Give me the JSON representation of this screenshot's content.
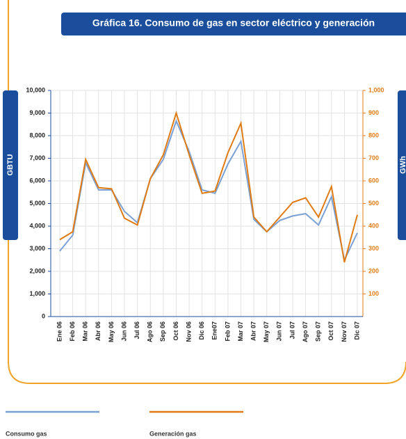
{
  "chart_data": {
    "type": "line",
    "title": "Gráfica 16. Consumo de gas en sector eléctrico y generación",
    "y_label": "GBTU",
    "y2_label": "GWh",
    "categories": [
      "Ene 06",
      "Feb 06",
      "Mar 06",
      "Abr 06",
      "May 06",
      "Jun 06",
      "Jul 06",
      "Ago 06",
      "Sep 06",
      "Oct 06",
      "Nov 06",
      "Dic 06",
      "Ene07",
      "Feb 07",
      "Mar 07",
      "Abr 07",
      "May 07",
      "Jun 07",
      "Jul 07",
      "Ago 07",
      "Sep 07",
      "Oct 07",
      "Nov 07",
      "Dic 07"
    ],
    "series": [
      {
        "name": "Consumo gas",
        "color": "#7aa0d4",
        "values": [
          2900,
          3600,
          6800,
          5600,
          5600,
          4650,
          4150,
          6100,
          6950,
          8650,
          7300,
          5600,
          5450,
          6750,
          7750,
          4300,
          3750,
          4250,
          4450,
          4550,
          4050,
          5300,
          2500,
          3700
        ]
      },
      {
        "name": "Generación gas",
        "color": "#e07b14",
        "axis": "y2",
        "values": [
          340,
          375,
          695,
          570,
          565,
          435,
          405,
          610,
          715,
          900,
          715,
          545,
          555,
          725,
          855,
          440,
          375,
          440,
          505,
          525,
          440,
          575,
          240,
          450
        ]
      }
    ],
    "ylim": [
      0,
      10000
    ],
    "yticks": [
      0,
      {
        "value": 1000,
        "label": "1,000"
      },
      {
        "value": 2000,
        "label": "2,000"
      },
      {
        "value": 3000,
        "label": "3,000"
      },
      {
        "value": 4000,
        "label": "4,000"
      },
      {
        "value": 5000,
        "label": "5,000"
      },
      {
        "value": 6000,
        "label": "6,000"
      },
      {
        "value": 7000,
        "label": "7,000"
      },
      {
        "value": 8000,
        "label": "8,000"
      },
      {
        "value": 9000,
        "label": "9,000"
      },
      {
        "value": 10000,
        "label": "10,000"
      }
    ],
    "y2lim": [
      0,
      1000
    ],
    "y2ticks": [
      100,
      200,
      300,
      400,
      500,
      600,
      700,
      800,
      900,
      {
        "value": 1000,
        "label": "1,000"
      }
    ],
    "grid": true
  }
}
